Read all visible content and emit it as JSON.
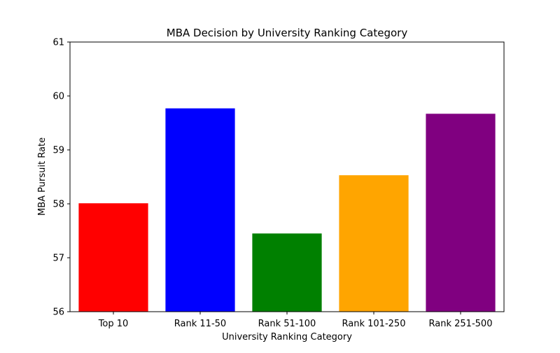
{
  "chart_data": {
    "type": "bar",
    "title": "MBA Decision by University Ranking Category",
    "xlabel": "University Ranking Category",
    "ylabel": "MBA Pursuit Rate",
    "categories": [
      "Top 10",
      "Rank 11-50",
      "Rank 51-100",
      "Rank 101-250",
      "Rank 251-500"
    ],
    "values": [
      58.01,
      59.77,
      57.45,
      58.53,
      59.67
    ],
    "colors": [
      "#ff0000",
      "#0000ff",
      "#008000",
      "#ffa500",
      "#800080"
    ],
    "ylim": [
      56,
      61
    ],
    "yticks": [
      56,
      57,
      58,
      59,
      60,
      61
    ],
    "grid": false,
    "legend": "none"
  }
}
